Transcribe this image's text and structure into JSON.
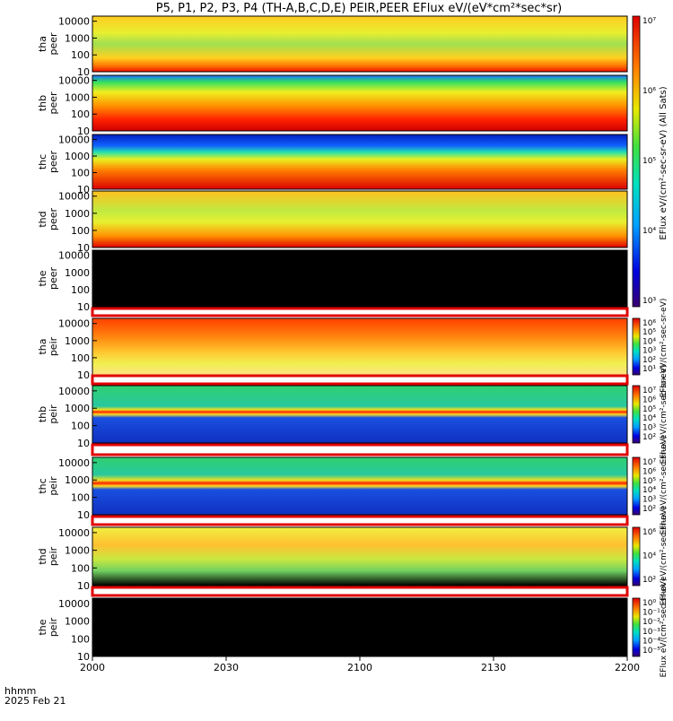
{
  "title": "P5, P1, P2, P3, P4 (TH-A,B,C,D,E) PEIR,PEER EFlux eV/(eV*cm²*sec*sr)",
  "x_axis": {
    "ticks": [
      "2000",
      "2030",
      "2100",
      "2130",
      "2200"
    ],
    "units_label": "hhmm",
    "date_label": "2025 Feb 21"
  },
  "colorbar_labels": {
    "peer": "EFlux eV/(cm²-sec-sr-eV)  (All Sats)",
    "peir_tha": "EFlux eV/(cm²-sec-sr-eV)",
    "peir_thb": "EFlux eV/(cm²-sec-sr-eV)",
    "peir_thc": "EFlux eV/(cm²-sec-sr-eV)",
    "peir_thd": "EFlux eV/(cm²-sec-sr-eV)",
    "peir_the": "EFlux eV/(cm²-sec-sr-eV)"
  },
  "chart_data": {
    "type": "heatmap",
    "x_range": [
      "2000",
      "2200"
    ],
    "y_scale": "log",
    "y_ticks": [
      "10",
      "100",
      "1000",
      "10000"
    ],
    "panels": [
      {
        "ylabel": [
          "tha",
          "peer"
        ],
        "status": "data"
      },
      {
        "ylabel": [
          "thb",
          "peer"
        ],
        "status": "data"
      },
      {
        "ylabel": [
          "thc",
          "peer"
        ],
        "status": "data"
      },
      {
        "ylabel": [
          "thd",
          "peer"
        ],
        "status": "data"
      },
      {
        "ylabel": [
          "the",
          "peer"
        ],
        "status": "no data"
      },
      {
        "ylabel": [
          "tha",
          "peir"
        ],
        "status": "data"
      },
      {
        "ylabel": [
          "thb",
          "peir"
        ],
        "status": "data"
      },
      {
        "ylabel": [
          "thc",
          "peir"
        ],
        "status": "data"
      },
      {
        "ylabel": [
          "thd",
          "peir"
        ],
        "status": "data"
      },
      {
        "ylabel": [
          "the",
          "peir"
        ],
        "status": "no data"
      }
    ],
    "colorbars": [
      {
        "id": "peer",
        "ticks": [
          "10⁷",
          "10⁶",
          "10⁵",
          "10⁴",
          "10³"
        ]
      },
      {
        "id": "peir_tha",
        "ticks": [
          "10⁶",
          "10⁵",
          "10⁴",
          "10³",
          "10²",
          "10¹"
        ]
      },
      {
        "id": "peir_thb",
        "ticks": [
          "10⁷",
          "10⁶",
          "10⁵",
          "10⁴",
          "10³",
          "10²"
        ]
      },
      {
        "id": "peir_thc",
        "ticks": [
          "10⁷",
          "10⁶",
          "10⁵",
          "10⁴",
          "10³",
          "10²"
        ]
      },
      {
        "id": "peir_thd",
        "ticks": [
          "10⁶",
          "10⁴",
          "10²"
        ]
      },
      {
        "id": "peir_the",
        "ticks": [
          "10⁰",
          "10⁻¹",
          "10⁻²",
          "10⁻³",
          "10⁻⁴",
          "10⁻⁵"
        ]
      }
    ]
  }
}
